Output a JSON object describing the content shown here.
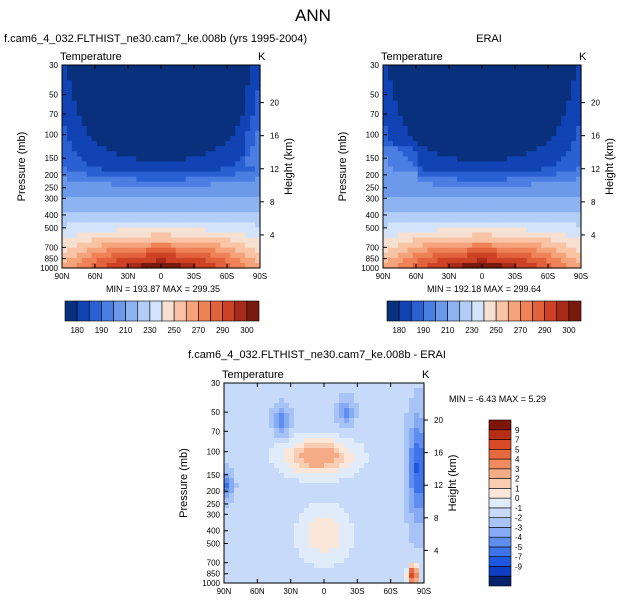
{
  "figure": {
    "title": "ANN"
  },
  "colors": {
    "temp_palette": [
      "#08307c",
      "#1143b4",
      "#2b60d3",
      "#4b7ee2",
      "#6c99ea",
      "#8eb3f1",
      "#b2cef6",
      "#d3e3f9",
      "#f6e0d2",
      "#f9c4a5",
      "#f5a37b",
      "#ef8257",
      "#e2623b",
      "#cd4225",
      "#a82a18",
      "#7a1a0e"
    ],
    "diff_palette": [
      "#08226e",
      "#0d3ec2",
      "#1e57e0",
      "#3d74ea",
      "#5f8ef0",
      "#86abf4",
      "#a8c4f7",
      "#c7daf9",
      "#e1ecfb",
      "#fbe7d9",
      "#f9cdb2",
      "#f5ac86",
      "#f08b60",
      "#e7693f",
      "#d94a27",
      "#b62e16",
      "#7d1508"
    ]
  },
  "chart_data": [
    {
      "type": "heatmap",
      "panel": "model",
      "title": "f.cam6_4_032.FLTHIST_ne30.cam7_ke.008b (yrs 1995-2004)",
      "left_label": "Temperature",
      "units": "K",
      "ylabel": "Pressure (mb)",
      "right_label": "Height (km)",
      "x_ticks": [
        "90N",
        "60N",
        "30N",
        "0",
        "30S",
        "60S",
        "90S"
      ],
      "y_ticks": [
        "30",
        "50",
        "70",
        "100",
        "150",
        "200",
        "250",
        "300",
        "400",
        "500",
        "700",
        "850",
        "1000"
      ],
      "height_ticks": [
        "4",
        "8",
        "12",
        "16",
        "20"
      ],
      "stats": "MIN = 193.87  MAX = 299.35",
      "colorbar_labels": [
        "180",
        "190",
        "210",
        "230",
        "250",
        "270",
        "290",
        "300"
      ],
      "levels": [
        170,
        180,
        185,
        190,
        200,
        210,
        220,
        230,
        240,
        250,
        260,
        270,
        280,
        290,
        295,
        300
      ],
      "xlim": [
        90,
        -90
      ],
      "ylim": [
        1000,
        30
      ],
      "y_scale": "log",
      "grid": false
    },
    {
      "type": "heatmap",
      "panel": "obs",
      "title": "ERAI",
      "left_label": "Temperature",
      "units": "K",
      "ylabel": "Pressure (mb)",
      "right_label": "Height (km)",
      "x_ticks": [
        "90N",
        "60N",
        "30N",
        "0",
        "30S",
        "60S",
        "90S"
      ],
      "y_ticks": [
        "30",
        "50",
        "70",
        "100",
        "150",
        "200",
        "250",
        "300",
        "400",
        "500",
        "700",
        "850",
        "1000"
      ],
      "height_ticks": [
        "4",
        "8",
        "12",
        "16",
        "20"
      ],
      "stats": "MIN = 192.18  MAX = 299.64",
      "colorbar_labels": [
        "180",
        "190",
        "210",
        "230",
        "250",
        "270",
        "290",
        "300"
      ],
      "levels": [
        170,
        180,
        185,
        190,
        200,
        210,
        220,
        230,
        240,
        250,
        260,
        270,
        280,
        290,
        295,
        300
      ],
      "xlim": [
        90,
        -90
      ],
      "ylim": [
        1000,
        30
      ],
      "y_scale": "log",
      "grid": false
    },
    {
      "type": "heatmap",
      "panel": "difference",
      "title": "f.cam6_4_032.FLTHIST_ne30.cam7_ke.008b - ERAI",
      "left_label": "Temperature",
      "units": "K",
      "ylabel": "Pressure (mb)",
      "right_label": "Height (km)",
      "x_ticks": [
        "90N",
        "60N",
        "30N",
        "0",
        "30S",
        "60S",
        "90S"
      ],
      "y_ticks": [
        "30",
        "50",
        "70",
        "100",
        "150",
        "200",
        "250",
        "300",
        "400",
        "500",
        "700",
        "850",
        "1000"
      ],
      "height_ticks": [
        "4",
        "8",
        "12",
        "16",
        "20"
      ],
      "stats": "MIN = -6.43  MAX =  5.29",
      "colorbar_labels": [
        "9",
        "7",
        "5",
        "4",
        "3",
        "2",
        "1",
        "0",
        "-1",
        "-2",
        "-3",
        "-4",
        "-5",
        "-7",
        "-9"
      ],
      "levels": [
        -9,
        -7,
        -5,
        -4,
        -3,
        -2,
        -1,
        -0.5,
        0,
        0.5,
        1,
        2,
        3,
        4,
        5,
        7,
        9
      ],
      "xlim": [
        90,
        -90
      ],
      "ylim": [
        1000,
        30
      ],
      "y_scale": "log",
      "grid": false
    }
  ]
}
